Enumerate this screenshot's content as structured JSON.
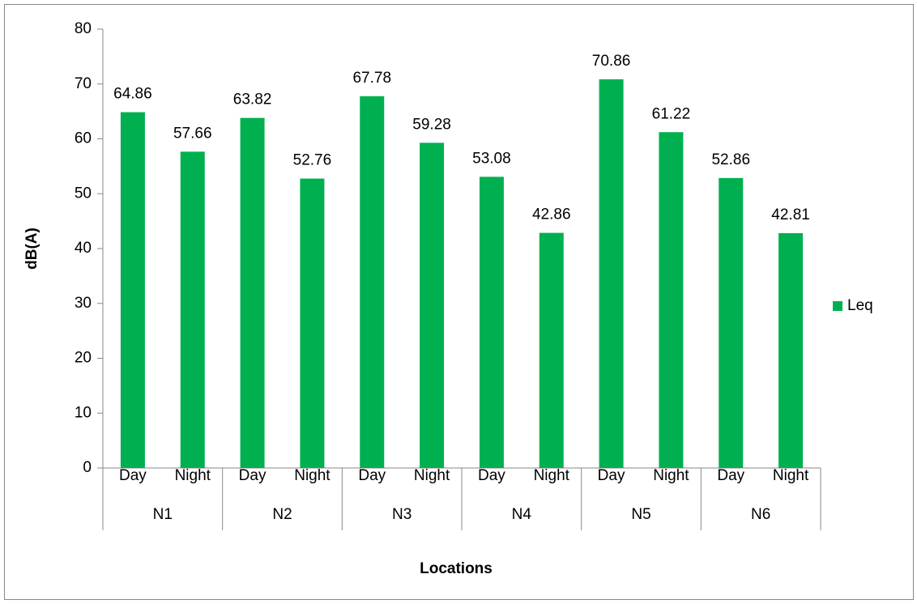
{
  "chart_data": {
    "type": "bar",
    "x_label": "Locations",
    "y_label": "dB(A)",
    "categories": [
      "Day",
      "Night",
      "Day",
      "Night",
      "Day",
      "Night",
      "Day",
      "Night",
      "Day",
      "Night",
      "Day",
      "Night"
    ],
    "groups": [
      "N1",
      "N2",
      "N3",
      "N4",
      "N5",
      "N6"
    ],
    "series": [
      {
        "name": "Leq",
        "color": "#00b050",
        "values": [
          64.86,
          57.66,
          63.82,
          52.76,
          67.78,
          59.28,
          53.08,
          42.86,
          70.86,
          61.22,
          52.86,
          42.81
        ]
      }
    ],
    "ylim": [
      0,
      80
    ],
    "yticks": [
      0,
      10,
      20,
      30,
      40,
      50,
      60,
      70,
      80
    ],
    "grid": false,
    "legend": "right"
  }
}
